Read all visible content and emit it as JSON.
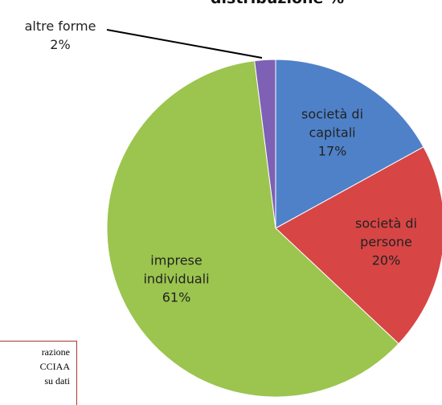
{
  "chart_data": {
    "type": "pie",
    "title": "distribuzione %",
    "categories": [
      "società di capitali",
      "società di persone",
      "imprese individuali",
      "altre forme"
    ],
    "values": [
      17,
      20,
      61,
      2
    ],
    "value_labels": [
      "17%",
      "20%",
      "61%",
      "2%"
    ],
    "colors": [
      "#4f81c9",
      "#d84545",
      "#9bc54e",
      "#7e60b4"
    ],
    "source": [
      "razione",
      "CCIAA",
      "su dati"
    ]
  }
}
